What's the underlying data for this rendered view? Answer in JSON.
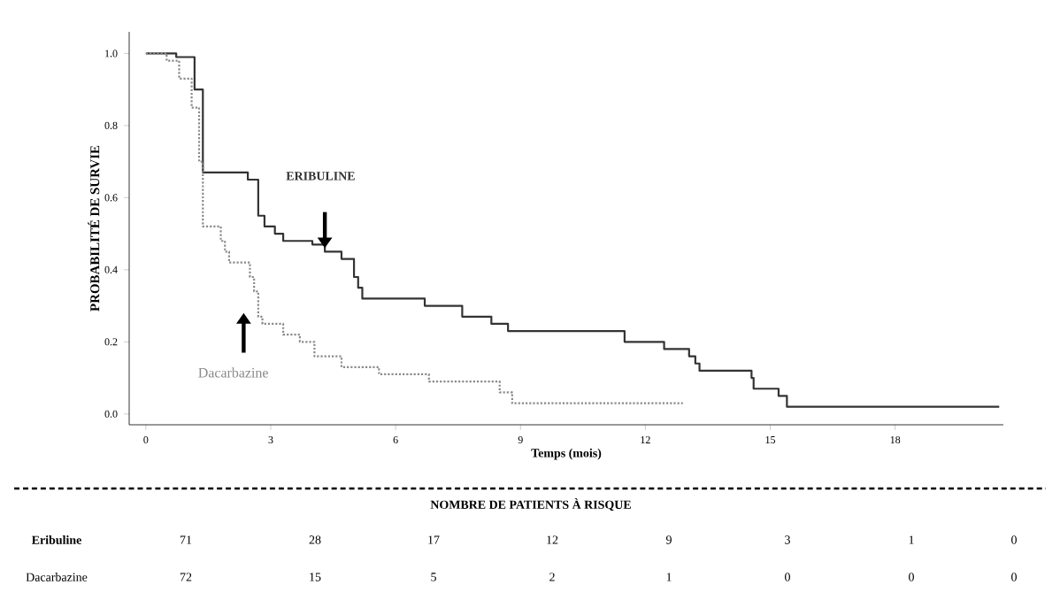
{
  "chart_data": {
    "type": "step",
    "xlabel": "Temps (mois)",
    "ylabel": "PROBABILITÉ DE SURVIE",
    "xlim": [
      -0.4,
      20.6
    ],
    "ylim": [
      -0.03,
      1.06
    ],
    "xticks": [
      0,
      3,
      6,
      9,
      12,
      15,
      18
    ],
    "yticks": [
      {
        "value": 0,
        "label": "0.0"
      },
      0.2,
      0.4,
      0.6,
      0.8,
      {
        "value": 1,
        "label": "1.0"
      }
    ],
    "marker": "none",
    "series": [
      {
        "name": "ERIBULINE",
        "color": "#333333",
        "line_style": "solid",
        "x": [
          0,
          0.73,
          1.17,
          1.37,
          2.45,
          2.7,
          2.85,
          3.1,
          3.3,
          4.0,
          4.3,
          4.7,
          5.0,
          5.1,
          5.2,
          6.7,
          7.6,
          8.3,
          8.7,
          11.5,
          12.45,
          13.05,
          13.2,
          13.3,
          14.55,
          14.6,
          15.2,
          15.4,
          20.5
        ],
        "values": [
          1.0,
          0.99,
          0.9,
          0.67,
          0.65,
          0.55,
          0.52,
          0.5,
          0.48,
          0.47,
          0.45,
          0.43,
          0.38,
          0.35,
          0.32,
          0.3,
          0.27,
          0.25,
          0.23,
          0.2,
          0.18,
          0.16,
          0.14,
          0.12,
          0.1,
          0.07,
          0.05,
          0.02,
          0.02
        ]
      },
      {
        "name": "Dacarbazine",
        "color": "#8a8a8a",
        "line_style": "dotted",
        "x": [
          0,
          0.5,
          0.8,
          1.1,
          1.28,
          1.37,
          1.8,
          1.9,
          2.0,
          2.5,
          2.6,
          2.7,
          2.8,
          3.3,
          3.7,
          4.05,
          4.7,
          5.6,
          6.8,
          8.5,
          8.8,
          12.9
        ],
        "values": [
          1.0,
          0.98,
          0.93,
          0.85,
          0.7,
          0.52,
          0.48,
          0.45,
          0.42,
          0.38,
          0.34,
          0.27,
          0.25,
          0.22,
          0.2,
          0.16,
          0.13,
          0.11,
          0.09,
          0.06,
          0.03,
          0.03
        ]
      }
    ],
    "annotations": [
      "NOMBRE DE PATIENTS À RISQUE",
      "Eribuline",
      "71",
      "28",
      "17",
      "12",
      "9",
      "3",
      "1",
      "0",
      "Dacarbazine",
      "72",
      "15",
      "5",
      "2",
      "1",
      "0",
      "0",
      "0"
    ]
  }
}
